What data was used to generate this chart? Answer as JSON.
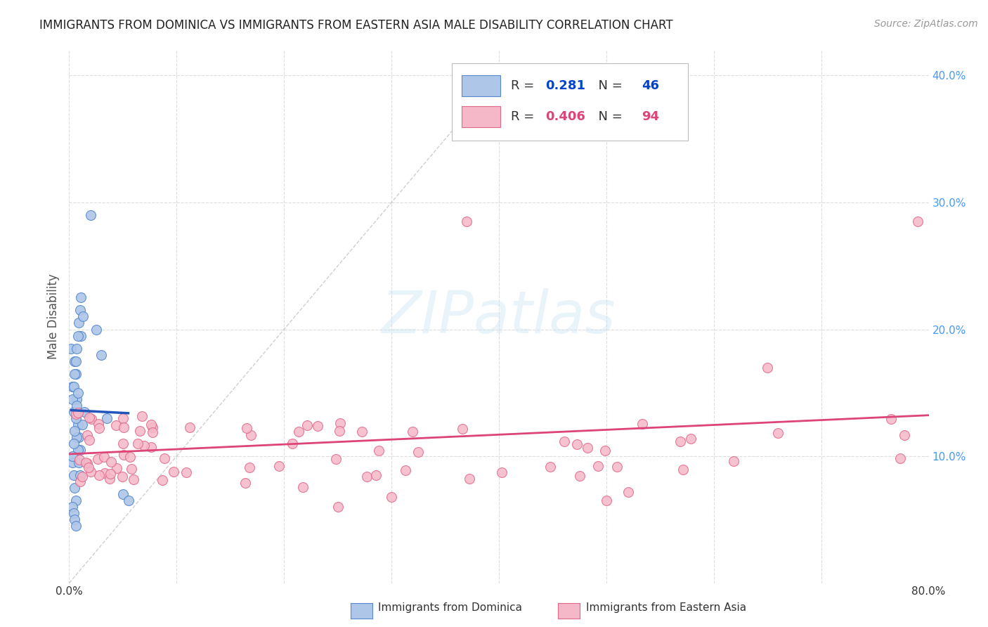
{
  "title": "IMMIGRANTS FROM DOMINICA VS IMMIGRANTS FROM EASTERN ASIA MALE DISABILITY CORRELATION CHART",
  "source": "Source: ZipAtlas.com",
  "ylabel": "Male Disability",
  "xlim": [
    0.0,
    0.8
  ],
  "ylim": [
    0.0,
    0.42
  ],
  "y_ticks": [
    0.0,
    0.1,
    0.2,
    0.3,
    0.4
  ],
  "y_tick_labels": [
    "",
    "10.0%",
    "20.0%",
    "30.0%",
    "40.0%"
  ],
  "x_ticks": [
    0.0,
    0.1,
    0.2,
    0.3,
    0.4,
    0.5,
    0.6,
    0.7,
    0.8
  ],
  "dominica_color": "#aec6e8",
  "dominica_edge_color": "#5588cc",
  "eastern_asia_color": "#f5b8c8",
  "eastern_asia_edge_color": "#e06888",
  "dominica_line_color": "#2255bb",
  "eastern_asia_line_color": "#dd4477",
  "diag_line_color": "#bbbbbb",
  "R_dominica": 0.281,
  "N_dominica": 46,
  "R_eastern_asia": 0.406,
  "N_eastern_asia": 94,
  "background_color": "#ffffff",
  "grid_color": "#dddddd",
  "title_color": "#222222",
  "axis_label_color": "#555555",
  "right_tick_color": "#4499ff",
  "legend_R_color": "#0044cc",
  "legend_N_color": "#0044cc"
}
